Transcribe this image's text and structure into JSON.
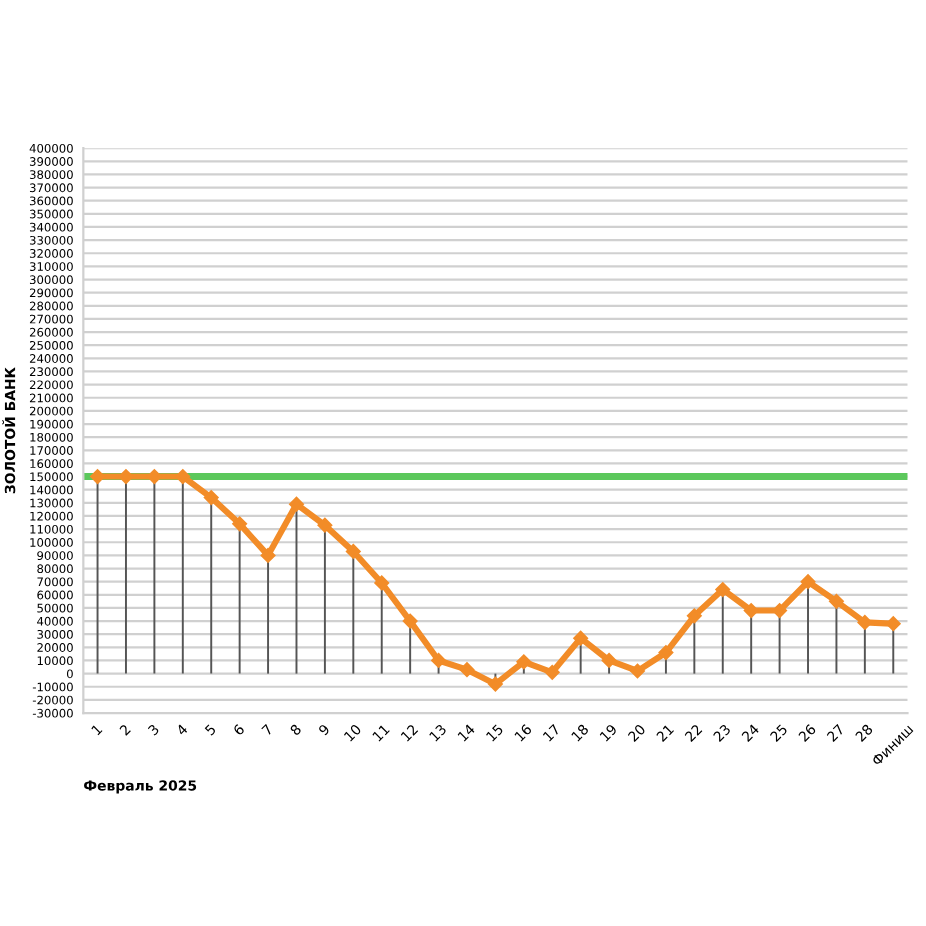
{
  "chart_data": {
    "type": "line",
    "xlabel": "Февраль 2025",
    "ylabel": "ЗОЛОТОЙ БАНК",
    "categories": [
      "1",
      "2",
      "3",
      "4",
      "5",
      "6",
      "7",
      "8",
      "9",
      "10",
      "11",
      "12",
      "13",
      "14",
      "15",
      "16",
      "17",
      "18",
      "19",
      "20",
      "21",
      "22",
      "23",
      "24",
      "25",
      "26",
      "27",
      "28",
      "Финиш"
    ],
    "series": [
      {
        "color": "#f28c28",
        "values": [
          150000,
          150000,
          150000,
          150000,
          134000,
          114000,
          90000,
          129000,
          113000,
          93000,
          69000,
          40000,
          10000,
          3000,
          -8000,
          9000,
          1000,
          27000,
          10000,
          2000,
          16000,
          44000,
          64000,
          48000,
          48000,
          70000,
          55000,
          39000,
          38000
        ],
        "errors": [
          [
            0,
            150000
          ],
          [
            0,
            150000
          ],
          [
            0,
            150000
          ],
          [
            0,
            150000
          ],
          [
            0,
            134000
          ],
          [
            0,
            114000
          ],
          [
            0,
            90000
          ],
          [
            0,
            129000
          ],
          [
            0,
            113000
          ],
          [
            0,
            93000
          ],
          [
            0,
            69000
          ],
          [
            0,
            40000
          ],
          [
            0,
            10000
          ],
          [
            0,
            3000
          ],
          [
            -8000,
            0
          ],
          [
            0,
            9000
          ],
          null,
          [
            0,
            27000
          ],
          [
            0,
            10000
          ],
          null,
          [
            0,
            16000
          ],
          [
            0,
            44000
          ],
          [
            0,
            64000
          ],
          [
            0,
            48000
          ],
          [
            0,
            48000
          ],
          [
            0,
            70000
          ],
          [
            0,
            55000
          ],
          [
            0,
            39000
          ],
          [
            0,
            38000
          ]
        ]
      }
    ],
    "ylim": [
      -30000,
      400000
    ],
    "yticks": [
      -30000,
      -20000,
      -10000,
      0,
      10000,
      20000,
      30000,
      40000,
      50000,
      60000,
      70000,
      80000,
      90000,
      100000,
      110000,
      120000,
      130000,
      140000,
      150000,
      160000,
      170000,
      180000,
      190000,
      200000,
      210000,
      220000,
      230000,
      240000,
      250000,
      260000,
      270000,
      280000,
      290000,
      300000,
      310000,
      320000,
      330000,
      340000,
      350000,
      360000,
      370000,
      380000,
      390000,
      400000
    ],
    "ref_lines": [
      {
        "axis": "y",
        "value": 150000,
        "color": "#5cc85c"
      }
    ],
    "grid": "y",
    "marker": "diamond",
    "line_style": "solid",
    "legend": false
  }
}
